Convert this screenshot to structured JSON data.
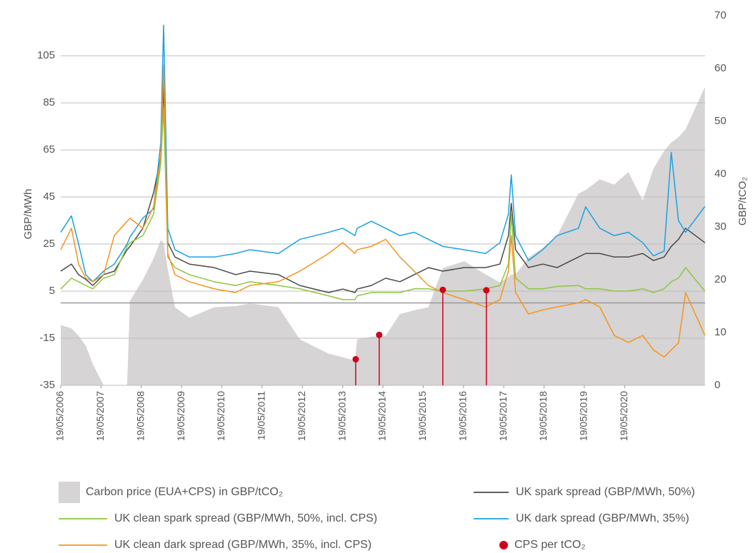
{
  "chart_data": {
    "type": "line",
    "ylabel": "GBP/MWh",
    "y2label": "GBP/tCO₂",
    "ylim": [
      -35,
      122
    ],
    "yticks": [
      -35,
      -15,
      5,
      25,
      45,
      65,
      85,
      105
    ],
    "y2lim": [
      0,
      70
    ],
    "y2ticks": [
      0,
      10,
      20,
      30,
      40,
      50,
      60,
      70
    ],
    "hline": 0,
    "grid": true,
    "xlim": [
      "2006-05-19",
      "2022-05-19"
    ],
    "xticks": [
      {
        "value": "2006-05-19",
        "label": "19/05/2006"
      },
      {
        "value": "2007-05-19",
        "label": "19/05/2007"
      },
      {
        "value": "2008-05-19",
        "label": "19/05/2008"
      },
      {
        "value": "2009-05-19",
        "label": "19/05/2009"
      },
      {
        "value": "2010-05-19",
        "label": "19/05/2010"
      },
      {
        "value": "2011-05-19",
        "label": "19/05/2011"
      },
      {
        "value": "2012-05-19",
        "label": "19/05/2012"
      },
      {
        "value": "2013-05-19",
        "label": "19/05/2013"
      },
      {
        "value": "2014-05-19",
        "label": "19/05/2014"
      },
      {
        "value": "2015-05-19",
        "label": "19/05/2015"
      },
      {
        "value": "2016-05-19",
        "label": "19/05/2016"
      },
      {
        "value": "2017-05-19",
        "label": "19/05/2017"
      },
      {
        "value": "2018-05-19",
        "label": "19/05/2018"
      },
      {
        "value": "2019-05-19",
        "label": "19/05/2019"
      },
      {
        "value": "2020-05-19",
        "label": "19/05/2020"
      }
    ],
    "x": [
      "2006-05-19",
      "2006-08-24",
      "2006-10-28",
      "2007-01-01",
      "2007-03-06",
      "2007-06-12",
      "2007-09-17",
      "2008-01-11",
      "2008-02-06",
      "2008-06-02",
      "2008-09-07",
      "2008-11-11",
      "2008-12-07",
      "2009-01-14",
      "2009-03-20",
      "2009-07-28",
      "2010-03-11",
      "2010-09-22",
      "2011-01-29",
      "2011-10-15",
      "2012-04-26",
      "2013-01-11",
      "2013-05-20",
      "2013-09-07",
      "2013-09-27",
      "2014-02-03",
      "2014-06-13",
      "2014-10-20",
      "2015-02-27",
      "2015-07-06",
      "2015-11-13",
      "2016-05-25",
      "2016-12-05",
      "2017-04-14",
      "2017-06-30",
      "2017-07-26",
      "2017-09-03",
      "2017-12-29",
      "2018-05-07",
      "2018-09-14",
      "2019-03-27",
      "2019-05-31",
      "2019-10-07",
      "2020-02-14",
      "2020-06-22",
      "2020-10-30",
      "2021-02-04",
      "2021-05-12",
      "2021-07-16",
      "2021-09-19",
      "2021-11-23",
      "2022-05-17"
    ],
    "series": [
      {
        "name": "Carbon price (EUA+CPS) in GBP/tCO₂",
        "type": "area",
        "axis": "y2",
        "color": "#d6d4d4",
        "values": [
          11.4,
          10.8,
          9.4,
          7.5,
          4,
          0,
          0,
          0,
          16,
          20,
          24,
          27.5,
          27,
          22,
          14.8,
          12.8,
          14.8,
          15,
          15.5,
          14.8,
          8.7,
          6,
          5.3,
          4.7,
          8.7,
          9.2,
          9.4,
          13.5,
          14.2,
          14.8,
          22.2,
          23.5,
          21,
          19.5,
          20.5,
          21,
          21,
          24.2,
          26,
          28.3,
          36.3,
          37,
          39,
          38,
          40.4,
          35,
          41,
          44.4,
          46,
          47,
          48.5,
          56.5
        ]
      },
      {
        "name": "UK spark spread (GBP/MWh, 50%)",
        "type": "line",
        "color": "#4a4a4a",
        "values": [
          13.5,
          16.5,
          12,
          10,
          7.4,
          12,
          13.5,
          22.6,
          24,
          31.7,
          46.8,
          62,
          92,
          25.6,
          19.5,
          16.5,
          15,
          12,
          13.5,
          12,
          7.4,
          4.4,
          5.9,
          4.4,
          5.9,
          7.4,
          10.5,
          9,
          12,
          15,
          13.5,
          15,
          15,
          16.5,
          28.6,
          42.3,
          22.6,
          15,
          16.5,
          15,
          19.5,
          21,
          21,
          19.5,
          19.5,
          21,
          18,
          19.5,
          24,
          27,
          31.7,
          25.6
        ]
      },
      {
        "name": "UK clean spark spread (GBP/MWh, 50%, incl. CPS)",
        "type": "line",
        "color": "#8dc63f",
        "values": [
          5.9,
          10.5,
          9,
          7.4,
          6,
          10.5,
          12,
          24,
          25.6,
          28.6,
          37.7,
          59,
          83,
          19.5,
          15,
          12,
          9,
          7.4,
          9,
          7.4,
          6,
          3,
          1.4,
          1.4,
          3,
          4.4,
          4.4,
          4.4,
          6,
          6,
          5,
          5,
          6,
          7.4,
          16.5,
          37.7,
          10.5,
          6,
          6,
          7,
          7.4,
          6,
          6,
          5,
          5,
          6,
          4.4,
          6,
          9,
          10.5,
          15,
          5
        ]
      },
      {
        "name": "UK dark spread (GBP/MWh, 35%)",
        "type": "line",
        "color": "#1ba1e2",
        "values": [
          30,
          37,
          25,
          12,
          9,
          13.5,
          16.5,
          25,
          28,
          36,
          40,
          68,
          118,
          31.7,
          22.6,
          19.5,
          19.5,
          21,
          22.6,
          21,
          27,
          30,
          31.7,
          28.6,
          31.7,
          34.7,
          31.7,
          28.6,
          30,
          27,
          24,
          22.6,
          21,
          25.6,
          37.7,
          54.4,
          28.6,
          18,
          22.6,
          28.6,
          31.7,
          40.8,
          31.7,
          28.6,
          30,
          25.6,
          20,
          22,
          64,
          35,
          30,
          41
        ]
      },
      {
        "name": "UK clean dark spread (GBP/MWh, 35%, incl. CPS)",
        "type": "line",
        "color": "#f7941d",
        "values": [
          22.6,
          31.7,
          16.5,
          10.5,
          9,
          12,
          28.6,
          34.7,
          36,
          31.7,
          40.8,
          62,
          101,
          21,
          12,
          9,
          6,
          4.4,
          7.4,
          9,
          13.5,
          21,
          25.6,
          21,
          22.6,
          24,
          27,
          19.5,
          13.5,
          7.4,
          4.4,
          1.4,
          -1.7,
          1.4,
          13.5,
          28.6,
          4.4,
          -4.7,
          -3,
          -1.7,
          0,
          1.4,
          -1.7,
          -13.8,
          -16.8,
          -13.8,
          -20,
          -23,
          -20,
          -17,
          4.4,
          -13.8
        ]
      },
      {
        "name": "CPS per tCO₂",
        "type": "scatter",
        "axis": "y2",
        "color": "#d0021b",
        "x": [
          "2013-09-14",
          "2014-04-15",
          "2015-11-13",
          "2016-12-12"
        ],
        "values": [
          4.94,
          9.55,
          18.08,
          18
        ]
      }
    ]
  }
}
